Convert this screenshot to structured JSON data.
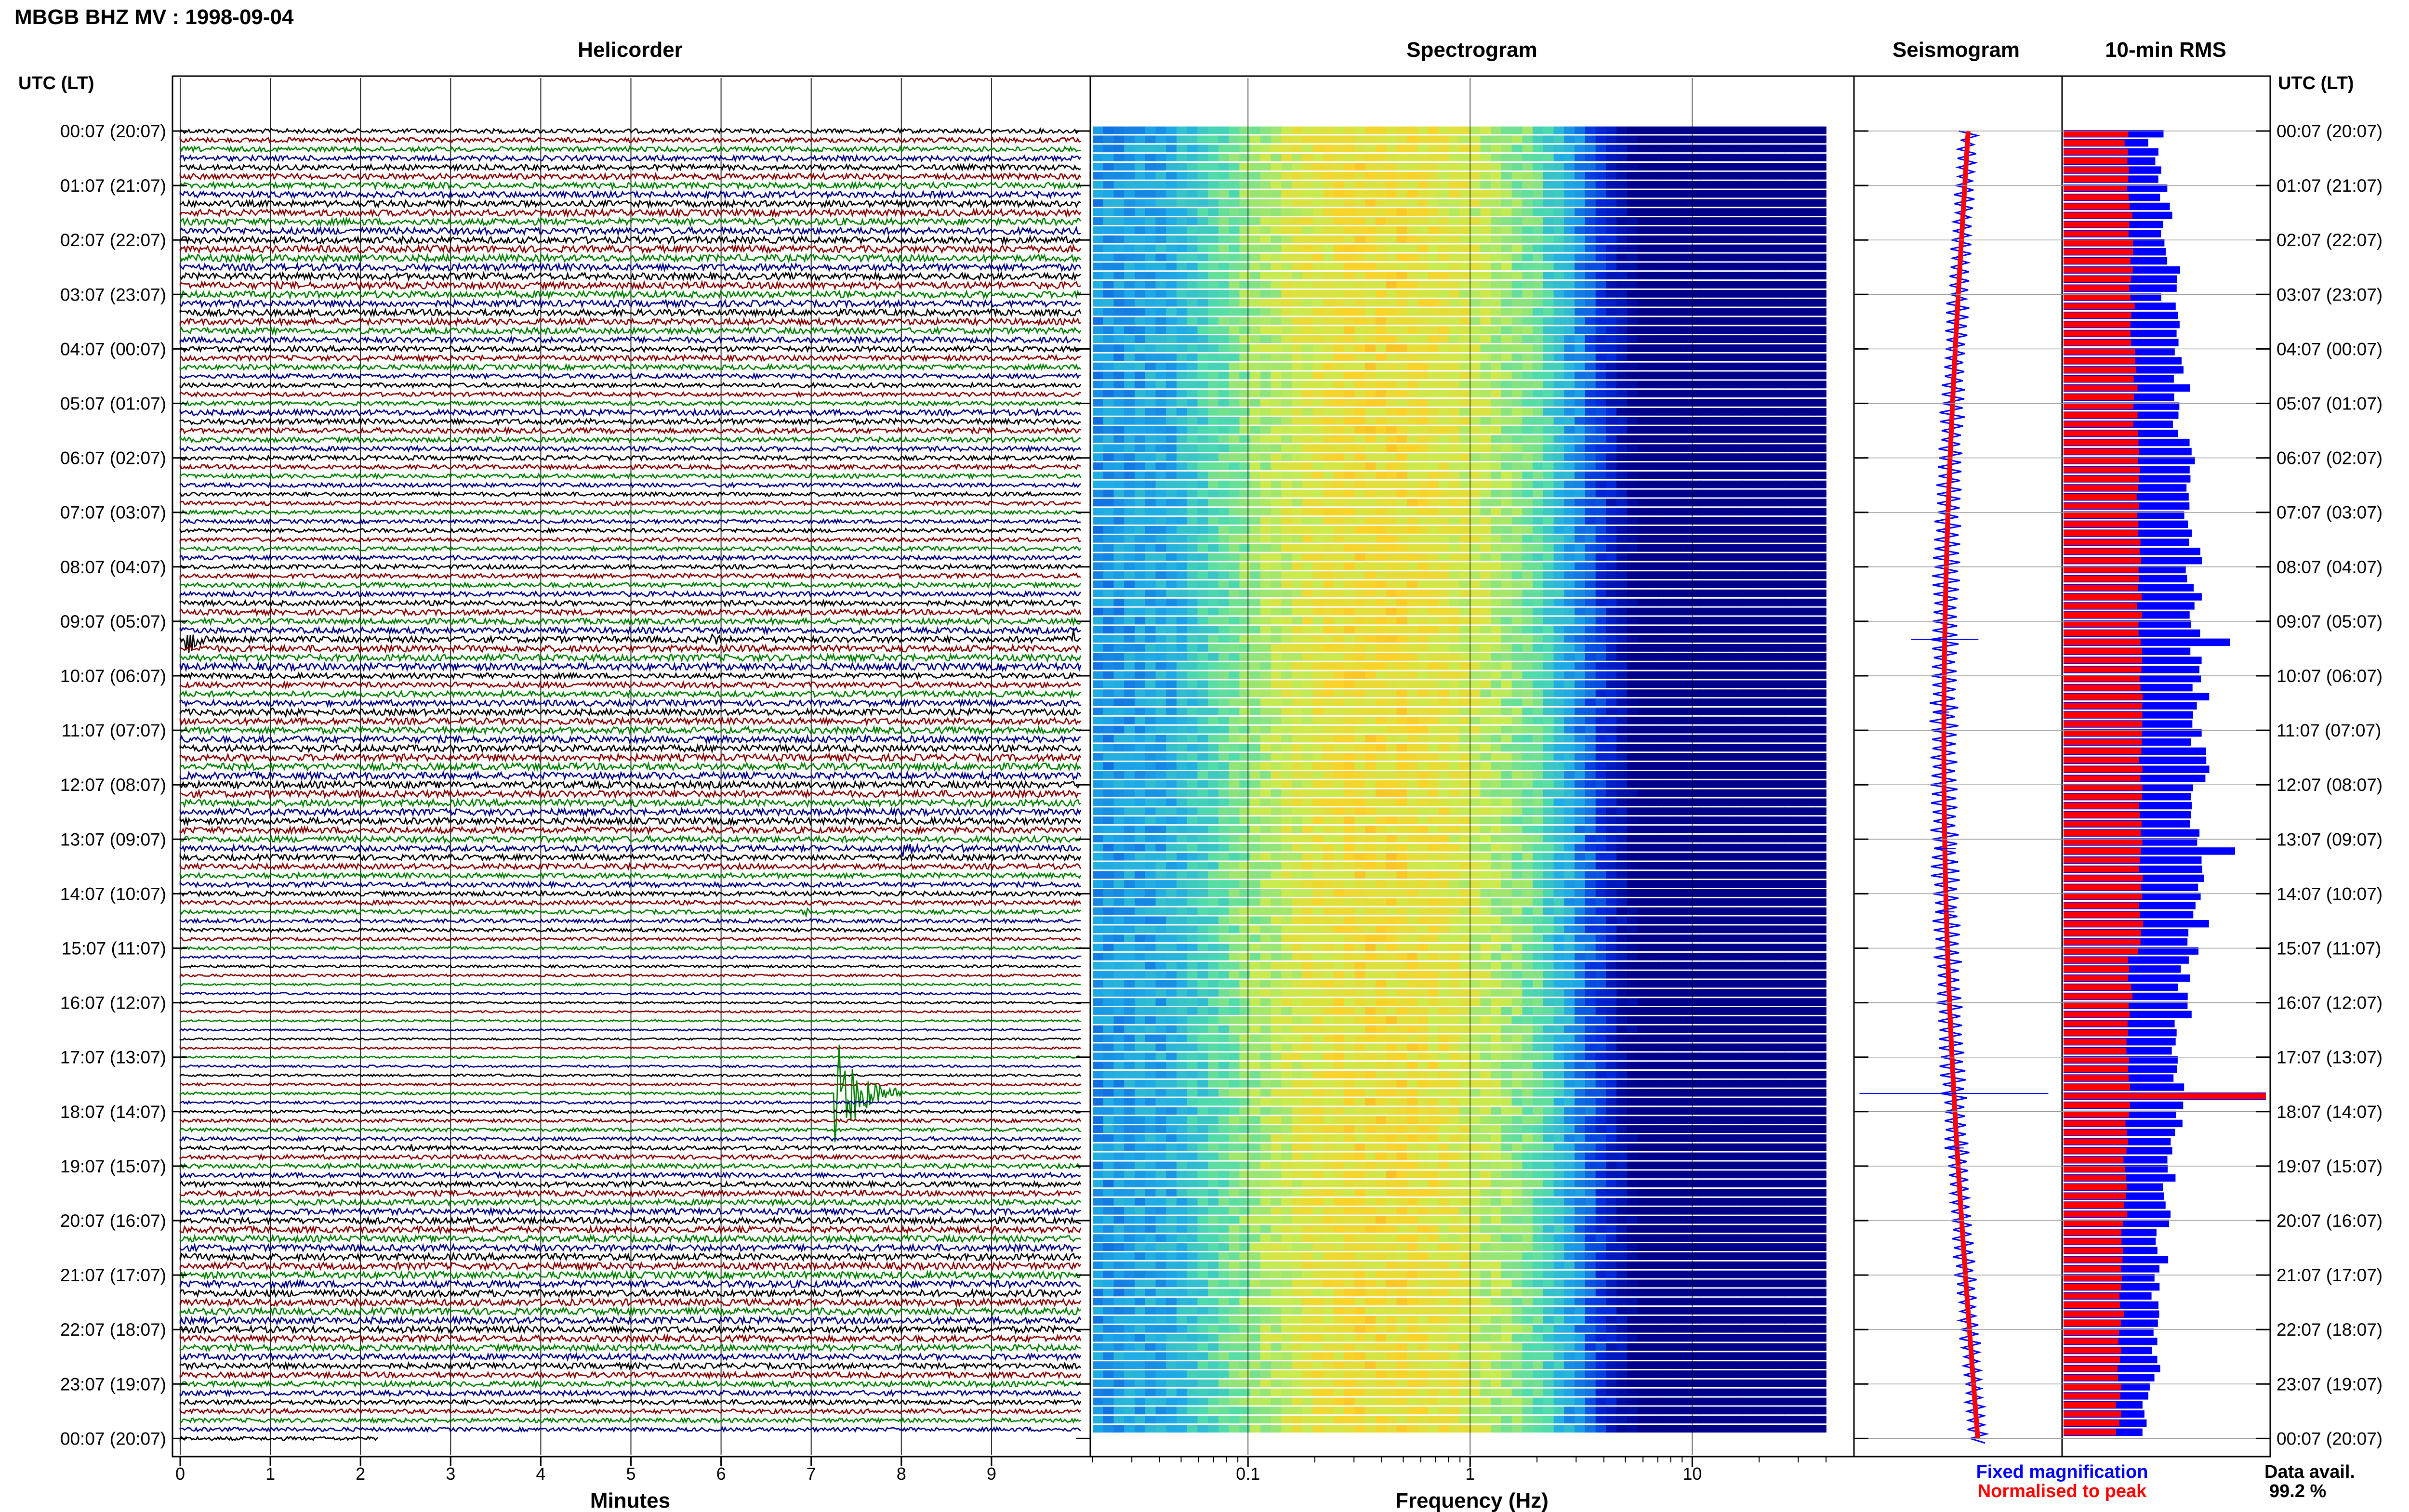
{
  "page_title": "MBGB BHZ MV : 1998-09-04",
  "panels": {
    "helicorder": "Helicorder",
    "spectrogram": "Spectrogram",
    "seismogram": "Seismogram",
    "rms": "10-min RMS"
  },
  "axis": {
    "left_header": "UTC (LT)",
    "right_header": "UTC (LT)",
    "helicorder_xlabel": "Minutes",
    "spectrogram_xlabel": "Frequency (Hz)"
  },
  "legend": {
    "fixed": "Fixed magnification",
    "normalised": "Normalised to peak"
  },
  "data_avail": {
    "label": "Data avail.",
    "value": "99.2 %"
  },
  "colors": {
    "trace_cycle": [
      "#000000",
      "#8b0000",
      "#008000",
      "#00008b"
    ],
    "fixed": "#0000ff",
    "normalised": "#ff0000",
    "spectro_low": "#00008b",
    "spectro_high": "#ff0000"
  },
  "chart_data": {
    "type": "helicorder",
    "time_labels": [
      "00:07 (20:07)",
      "01:07 (21:07)",
      "02:07 (22:07)",
      "03:07 (23:07)",
      "04:07 (00:07)",
      "05:07 (01:07)",
      "06:07 (02:07)",
      "07:07 (03:07)",
      "08:07 (04:07)",
      "09:07 (05:07)",
      "10:07 (06:07)",
      "11:07 (07:07)",
      "12:07 (08:07)",
      "13:07 (09:07)",
      "14:07 (10:07)",
      "15:07 (11:07)",
      "16:07 (12:07)",
      "17:07 (13:07)",
      "18:07 (14:07)",
      "19:07 (15:07)",
      "20:07 (16:07)",
      "21:07 (17:07)",
      "22:07 (18:07)",
      "23:07 (19:07)",
      "00:07 (20:07)"
    ],
    "minute_ticks": [
      0,
      1,
      2,
      3,
      4,
      5,
      6,
      7,
      8,
      9
    ],
    "minutes_range": [
      0,
      10
    ],
    "rows_per_hour": 6,
    "row_count": 145,
    "freq_ticks": [
      0.1,
      1,
      10
    ],
    "freq_range_hz": [
      0.02,
      40
    ],
    "freq_scale": "log",
    "events": [
      {
        "row": 56,
        "minute": 0.05,
        "duration_min": 0.4,
        "amp_rows": 2.5
      },
      {
        "row": 56,
        "minute": 5.9,
        "duration_min": 0.2,
        "amp_rows": 0.8
      },
      {
        "row": 56,
        "minute": 9.9,
        "duration_min": 0.05,
        "amp_rows": 2.0
      },
      {
        "row": 64,
        "minute": 1.0,
        "duration_min": 0.7,
        "amp_rows": 0.4
      },
      {
        "row": 79,
        "minute": 8.0,
        "duration_min": 1.3,
        "amp_rows": 0.8
      },
      {
        "row": 86,
        "minute": 6.9,
        "duration_min": 0.2,
        "amp_rows": 0.6
      },
      {
        "row": 106,
        "minute": 7.25,
        "duration_min": 0.8,
        "amp_rows": 7.0
      },
      {
        "row": 112,
        "minute": 2.5,
        "duration_min": 0.6,
        "amp_rows": 0.5
      },
      {
        "row": 112,
        "minute": 1.6,
        "duration_min": 0.3,
        "amp_rows": 0.3
      }
    ]
  }
}
